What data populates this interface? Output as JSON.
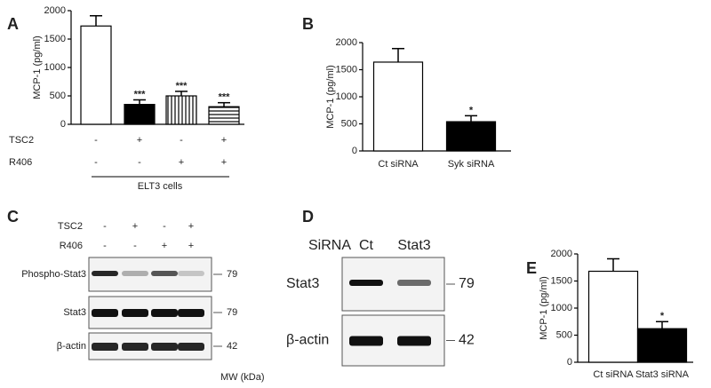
{
  "chart_data": [
    {
      "type": "bar",
      "label": "A",
      "ylabel": "MCP-1 (pg/ml)",
      "categories": [
        null,
        null,
        null,
        null
      ],
      "values": [
        1730,
        350,
        500,
        310
      ],
      "errors": [
        180,
        80,
        80,
        70
      ],
      "annotations": [
        null,
        "***",
        "***",
        "***"
      ],
      "patterns": [
        "white",
        "black",
        "vertical-stripes",
        "horizontal-stripes"
      ],
      "rows": [
        {
          "name": "TSC2",
          "values": [
            "-",
            "+",
            "-",
            "+"
          ]
        },
        {
          "name": "R406",
          "values": [
            "-",
            "-",
            "+",
            "+"
          ]
        }
      ],
      "group_label": "ELT3 cells",
      "ylim": [
        0,
        2000
      ],
      "yticks": [
        0,
        500,
        1000,
        1500,
        2000
      ]
    },
    {
      "type": "bar",
      "label": "B",
      "ylabel": "MCP-1 (pg/ml)",
      "categories": [
        "Ct siRNA",
        "Syk siRNA"
      ],
      "values": [
        1640,
        540
      ],
      "errors": [
        250,
        110
      ],
      "annotations": [
        null,
        "*"
      ],
      "patterns": [
        "white",
        "black"
      ],
      "ylim": [
        0,
        2000
      ],
      "yticks": [
        0,
        500,
        1000,
        1500,
        2000
      ]
    },
    {
      "type": "bar",
      "label": "E",
      "ylabel": "MCP-1 (pg/ml)",
      "categories": [
        "Ct siRNA",
        "Stat3 siRNA"
      ],
      "values": [
        1680,
        620
      ],
      "errors": [
        230,
        130
      ],
      "annotations": [
        null,
        "*"
      ],
      "patterns": [
        "white",
        "black"
      ],
      "ylim": [
        0,
        2000
      ],
      "yticks": [
        0,
        500,
        1000,
        1500,
        2000
      ]
    }
  ],
  "blots": [
    {
      "label": "C",
      "conditions": [
        {
          "name": "TSC2",
          "values": [
            "-",
            "+",
            "-",
            "+"
          ]
        },
        {
          "name": "R406",
          "values": [
            "-",
            "-",
            "+",
            "+"
          ]
        }
      ],
      "rows": [
        {
          "name": "Phospho-Stat3",
          "mw": 79
        },
        {
          "name": "Stat3",
          "mw": 79
        },
        {
          "name": "β-actin",
          "mw": 42
        }
      ],
      "mw_label": "MW (kDa)"
    },
    {
      "label": "D",
      "header": "SiRNA",
      "lanes": [
        "Ct",
        "Stat3"
      ],
      "rows": [
        {
          "name": "Stat3",
          "mw": 79
        },
        {
          "name": "β-actin",
          "mw": 42
        }
      ]
    }
  ]
}
